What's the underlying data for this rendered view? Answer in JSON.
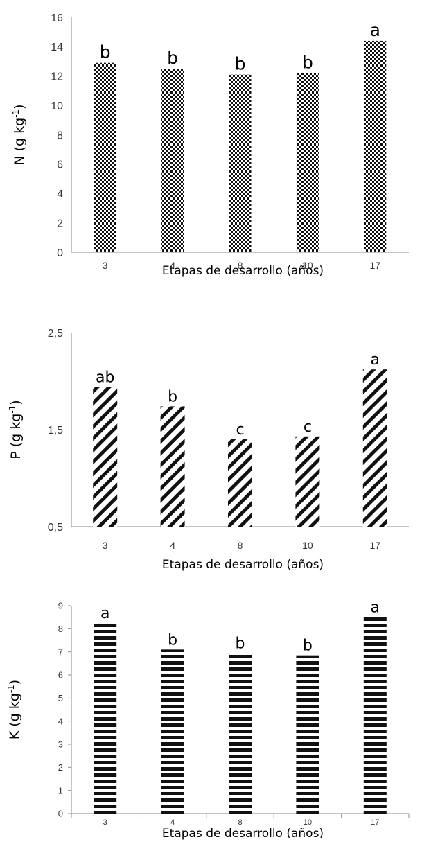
{
  "chart_data": [
    {
      "type": "bar",
      "categories": [
        "3",
        "4",
        "8",
        "10",
        "17"
      ],
      "values": [
        12.9,
        12.5,
        12.1,
        12.2,
        14.4
      ],
      "significance_letters": [
        "b",
        "b",
        "b",
        "b",
        "a"
      ],
      "ylabel_main": "N (g kg",
      "ylabel_sup": "-1",
      "ylabel_close": ")",
      "xlabel": "Etapas de desarrollo (años)",
      "ylim": [
        0,
        16
      ],
      "yticks": [
        "0",
        "2",
        "4",
        "6",
        "8",
        "10",
        "12",
        "14",
        "16"
      ],
      "ytick_values": [
        0,
        2,
        4,
        6,
        8,
        10,
        12,
        14,
        16
      ],
      "pattern": "checkerboard",
      "grid": false
    },
    {
      "type": "bar",
      "categories": [
        "3",
        "4",
        "8",
        "10",
        "17"
      ],
      "values": [
        1.94,
        1.74,
        1.4,
        1.43,
        2.12
      ],
      "significance_letters": [
        "ab",
        "b",
        "c",
        "c",
        "a"
      ],
      "ylabel_main": "P (g kg",
      "ylabel_sup": "-1",
      "ylabel_close": ")",
      "xlabel": "Etapas de desarrollo (años)",
      "ylim": [
        0.5,
        2.5
      ],
      "yticks": [
        "0,5",
        "1,5",
        "2,5"
      ],
      "ytick_values": [
        0.5,
        1.5,
        2.5
      ],
      "pattern": "diagonal-stripes",
      "grid": false
    },
    {
      "type": "bar",
      "categories": [
        "3",
        "4",
        "8",
        "10",
        "17"
      ],
      "values": [
        8.25,
        7.1,
        6.95,
        6.85,
        8.5
      ],
      "significance_letters": [
        "a",
        "b",
        "b",
        "b",
        "a"
      ],
      "ylabel_main": "K (g kg",
      "ylabel_sup": "-1",
      "ylabel_close": ")",
      "xlabel": "Etapas de desarrollo (años)",
      "ylim": [
        0,
        9
      ],
      "yticks": [
        "0",
        "1",
        "2",
        "3",
        "4",
        "5",
        "6",
        "7",
        "8",
        "9"
      ],
      "ytick_values": [
        0,
        1,
        2,
        3,
        4,
        5,
        6,
        7,
        8,
        9
      ],
      "pattern": "horizontal-stripes",
      "grid": false
    }
  ]
}
